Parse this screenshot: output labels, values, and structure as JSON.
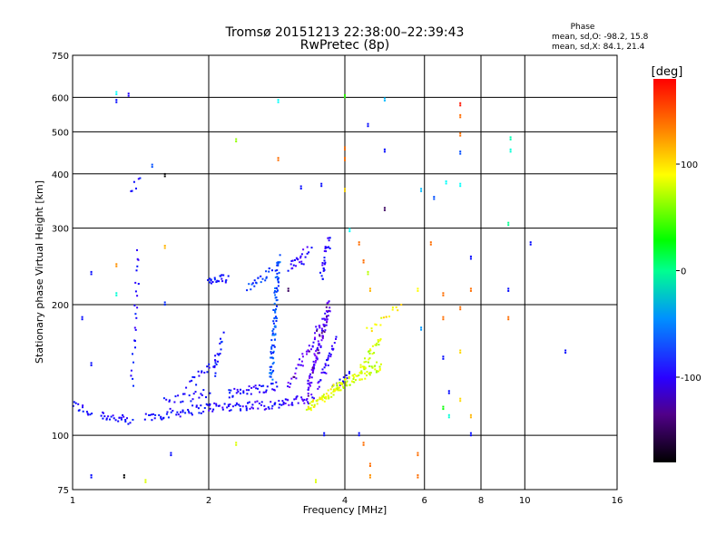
{
  "chart_data": {
    "type": "scatter",
    "title": "Tromsø 20151213 22:38:00–22:39:43",
    "subtitle": "RwPretec (8p)",
    "xlabel": "Frequency [MHz]",
    "ylabel": "Stationary phase Virtual Height [km]",
    "x_scale": "log",
    "y_scale": "log",
    "xlim": [
      1,
      16
    ],
    "ylim": [
      75,
      750
    ],
    "x_ticks": [
      1,
      2,
      4,
      6,
      8,
      10,
      16
    ],
    "y_ticks": [
      75,
      100,
      200,
      300,
      400,
      500,
      600,
      750
    ],
    "grid": true,
    "phase_info": {
      "title": "Phase",
      "line1": "mean, sd,O:  -98.2, 15.8",
      "line2": "mean, sd,X:  84.1, 21.4"
    },
    "colorbar": {
      "label": "[deg]",
      "range": [
        -180,
        180
      ],
      "ticks": [
        100,
        0,
        -100
      ],
      "tick_labels": [
        "100",
        "0",
        "-100"
      ]
    },
    "traces": [
      {
        "x_range": [
          1.0,
          1.1
        ],
        "h_range": [
          118,
          112
        ],
        "phase": -105,
        "count": 14
      },
      {
        "x_range": [
          1.15,
          1.35
        ],
        "h_range": [
          112,
          107
        ],
        "phase": -105,
        "count": 26
      },
      {
        "x_range": [
          1.45,
          2.0
        ],
        "h_range": [
          110,
          116
        ],
        "phase": -105,
        "count": 46
      },
      {
        "x_range": [
          2.0,
          2.9
        ],
        "h_range": [
          116,
          118
        ],
        "phase": -110,
        "count": 58
      },
      {
        "x_range": [
          2.9,
          3.4
        ],
        "h_range": [
          118,
          122
        ],
        "phase": -115,
        "count": 28
      },
      {
        "x_range": [
          1.6,
          2.0
        ],
        "h_range": [
          120,
          125
        ],
        "phase": -105,
        "count": 22
      },
      {
        "x_range": [
          1.8,
          2.1
        ],
        "h_range": [
          130,
          150
        ],
        "phase": -110,
        "count": 20
      },
      {
        "x_range": [
          2.05,
          2.15
        ],
        "h_range": [
          140,
          170
        ],
        "phase": -100,
        "count": 16
      },
      {
        "x_range": [
          2.2,
          2.85
        ],
        "h_range": [
          125,
          130
        ],
        "phase": -105,
        "count": 40
      },
      {
        "x_range": [
          2.75,
          2.85
        ],
        "h_range": [
          135,
          255
        ],
        "phase": -80,
        "count": 90
      },
      {
        "x_range": [
          2.0,
          2.2
        ],
        "h_range": [
          225,
          230
        ],
        "phase": -100,
        "count": 24
      },
      {
        "x_range": [
          2.45,
          2.75
        ],
        "h_range": [
          220,
          240
        ],
        "phase": -90,
        "count": 22
      },
      {
        "x_range": [
          3.0,
          3.25
        ],
        "h_range": [
          245,
          255
        ],
        "phase": -110,
        "count": 16
      },
      {
        "x_range": [
          3.15,
          3.35
        ],
        "h_range": [
          255,
          270
        ],
        "phase": -115,
        "count": 10
      },
      {
        "x_range": [
          3.55,
          3.7
        ],
        "h_range": [
          230,
          285
        ],
        "phase": -110,
        "count": 28
      },
      {
        "x_range": [
          3.3,
          3.7
        ],
        "h_range": [
          125,
          200
        ],
        "phase": -128,
        "count": 90
      },
      {
        "x_range": [
          3.0,
          3.6
        ],
        "h_range": [
          130,
          185
        ],
        "phase": -125,
        "count": 40
      },
      {
        "x_range": [
          3.5,
          3.8
        ],
        "h_range": [
          130,
          165
        ],
        "phase": -115,
        "count": 30
      },
      {
        "x_range": [
          3.8,
          4.1
        ],
        "h_range": [
          130,
          140
        ],
        "phase": -105,
        "count": 12
      },
      {
        "x_range": [
          3.3,
          3.9
        ],
        "h_range": [
          115,
          130
        ],
        "phase": 105,
        "count": 60
      },
      {
        "x_range": [
          3.8,
          4.8
        ],
        "h_range": [
          128,
          145
        ],
        "phase": 95,
        "count": 70
      },
      {
        "x_range": [
          4.3,
          4.8
        ],
        "h_range": [
          140,
          165
        ],
        "phase": 95,
        "count": 30
      },
      {
        "x_range": [
          4.5,
          5.3
        ],
        "h_range": [
          175,
          200
        ],
        "phase": 110,
        "count": 16
      },
      {
        "x_range": [
          1.35,
          1.4
        ],
        "h_range": [
          130,
          265
        ],
        "phase": -105,
        "count": 24
      },
      {
        "x_range": [
          1.35,
          1.4
        ],
        "h_range": [
          370,
          385
        ],
        "phase": -105,
        "count": 6
      }
    ],
    "scattered_points": [
      {
        "x": 1.25,
        "h": 610,
        "phase": -30
      },
      {
        "x": 1.25,
        "h": 585,
        "phase": -100
      },
      {
        "x": 1.33,
        "h": 605,
        "phase": -110
      },
      {
        "x": 1.5,
        "h": 415,
        "phase": -80
      },
      {
        "x": 1.6,
        "h": 395,
        "phase": -180
      },
      {
        "x": 1.1,
        "h": 235,
        "phase": -100
      },
      {
        "x": 1.25,
        "h": 245,
        "phase": 140
      },
      {
        "x": 1.25,
        "h": 210,
        "phase": -20
      },
      {
        "x": 1.6,
        "h": 270,
        "phase": 130
      },
      {
        "x": 1.6,
        "h": 200,
        "phase": -90
      },
      {
        "x": 1.05,
        "h": 185,
        "phase": -100
      },
      {
        "x": 1.1,
        "h": 145,
        "phase": -100
      },
      {
        "x": 1.65,
        "h": 90,
        "phase": -100
      },
      {
        "x": 1.3,
        "h": 80,
        "phase": -180
      },
      {
        "x": 1.1,
        "h": 80,
        "phase": -100
      },
      {
        "x": 1.45,
        "h": 78,
        "phase": 100
      },
      {
        "x": 2.3,
        "h": 475,
        "phase": 80
      },
      {
        "x": 2.3,
        "h": 95,
        "phase": 100
      },
      {
        "x": 2.85,
        "h": 585,
        "phase": -30
      },
      {
        "x": 2.85,
        "h": 430,
        "phase": 150
      },
      {
        "x": 3.0,
        "h": 215,
        "phase": -150
      },
      {
        "x": 3.2,
        "h": 370,
        "phase": -100
      },
      {
        "x": 3.55,
        "h": 375,
        "phase": -100
      },
      {
        "x": 3.6,
        "h": 100,
        "phase": -100
      },
      {
        "x": 3.45,
        "h": 78,
        "phase": 100
      },
      {
        "x": 4.0,
        "h": 600,
        "phase": 50
      },
      {
        "x": 4.0,
        "h": 455,
        "phase": 150
      },
      {
        "x": 4.0,
        "h": 430,
        "phase": 150
      },
      {
        "x": 4.0,
        "h": 365,
        "phase": 120
      },
      {
        "x": 4.1,
        "h": 295,
        "phase": -30
      },
      {
        "x": 4.3,
        "h": 275,
        "phase": 150
      },
      {
        "x": 4.4,
        "h": 250,
        "phase": 150
      },
      {
        "x": 4.5,
        "h": 235,
        "phase": 90
      },
      {
        "x": 4.55,
        "h": 215,
        "phase": 130
      },
      {
        "x": 4.5,
        "h": 515,
        "phase": -100
      },
      {
        "x": 4.9,
        "h": 590,
        "phase": -50
      },
      {
        "x": 4.9,
        "h": 450,
        "phase": -100
      },
      {
        "x": 4.9,
        "h": 330,
        "phase": -150
      },
      {
        "x": 4.3,
        "h": 100,
        "phase": -100
      },
      {
        "x": 4.4,
        "h": 95,
        "phase": 150
      },
      {
        "x": 4.55,
        "h": 85,
        "phase": 150
      },
      {
        "x": 4.55,
        "h": 80,
        "phase": 140
      },
      {
        "x": 5.9,
        "h": 365,
        "phase": -50
      },
      {
        "x": 5.8,
        "h": 90,
        "phase": 150
      },
      {
        "x": 5.8,
        "h": 80,
        "phase": 150
      },
      {
        "x": 5.8,
        "h": 215,
        "phase": 110
      },
      {
        "x": 5.9,
        "h": 175,
        "phase": -60
      },
      {
        "x": 6.2,
        "h": 275,
        "phase": 150
      },
      {
        "x": 6.3,
        "h": 350,
        "phase": -80
      },
      {
        "x": 6.7,
        "h": 380,
        "phase": -30
      },
      {
        "x": 6.6,
        "h": 210,
        "phase": 150
      },
      {
        "x": 6.6,
        "h": 185,
        "phase": 150
      },
      {
        "x": 6.6,
        "h": 150,
        "phase": -100
      },
      {
        "x": 6.8,
        "h": 110,
        "phase": -20
      },
      {
        "x": 6.8,
        "h": 125,
        "phase": -100
      },
      {
        "x": 6.6,
        "h": 115,
        "phase": 40
      },
      {
        "x": 7.2,
        "h": 375,
        "phase": -30
      },
      {
        "x": 7.2,
        "h": 575,
        "phase": 175
      },
      {
        "x": 7.2,
        "h": 540,
        "phase": 150
      },
      {
        "x": 7.2,
        "h": 490,
        "phase": 150
      },
      {
        "x": 7.2,
        "h": 445,
        "phase": -80
      },
      {
        "x": 7.2,
        "h": 195,
        "phase": 150
      },
      {
        "x": 7.2,
        "h": 155,
        "phase": 120
      },
      {
        "x": 7.2,
        "h": 120,
        "phase": 120
      },
      {
        "x": 7.6,
        "h": 255,
        "phase": -100
      },
      {
        "x": 7.6,
        "h": 215,
        "phase": 150
      },
      {
        "x": 7.6,
        "h": 100,
        "phase": -100
      },
      {
        "x": 7.6,
        "h": 110,
        "phase": 130
      },
      {
        "x": 9.3,
        "h": 480,
        "phase": -10
      },
      {
        "x": 9.3,
        "h": 450,
        "phase": -20
      },
      {
        "x": 9.2,
        "h": 305,
        "phase": 0
      },
      {
        "x": 9.2,
        "h": 215,
        "phase": -100
      },
      {
        "x": 9.2,
        "h": 185,
        "phase": 150
      },
      {
        "x": 10.3,
        "h": 275,
        "phase": -100
      },
      {
        "x": 12.3,
        "h": 155,
        "phase": -100
      }
    ]
  }
}
